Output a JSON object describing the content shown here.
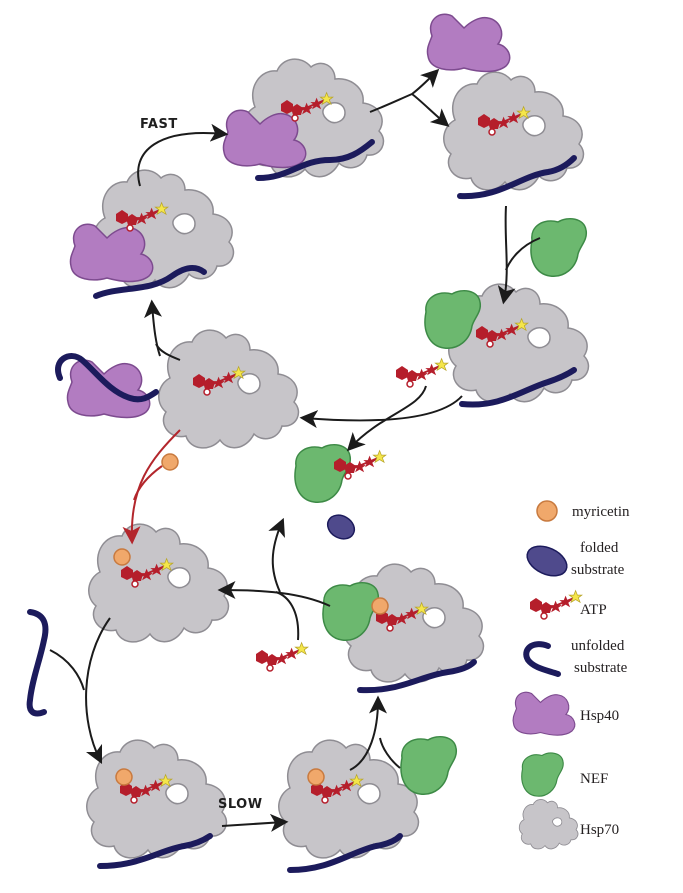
{
  "colors": {
    "hsp70": "#c7c5c9",
    "hsp70_stroke": "#8f8d93",
    "hsp40": "#b27cc1",
    "hsp40_stroke": "#7d4b8f",
    "nef": "#6cb86f",
    "nef_stroke": "#3d8a46",
    "substrate": "#1c1b5c",
    "folded_substrate": "#4f4a8c",
    "atp_red": "#b51e2b",
    "atp_star": "#f5e64a",
    "myricetin_fill": "#f0a86b",
    "myricetin_stroke": "#c87a3f",
    "arrow": "#1b1b1b",
    "arrow_inhibited": "#b3262c"
  },
  "labels": {
    "fast": "FAST",
    "slow": "SLOW"
  },
  "legend": {
    "myricetin": "myricetin",
    "folded_line1": "folded",
    "folded_line2": "substrate",
    "atp": "ATP",
    "unfolded_line1": "unfolded",
    "unfolded_line2": "substrate",
    "hsp40": "Hsp40",
    "nef": "NEF",
    "hsp70": "Hsp70"
  }
}
